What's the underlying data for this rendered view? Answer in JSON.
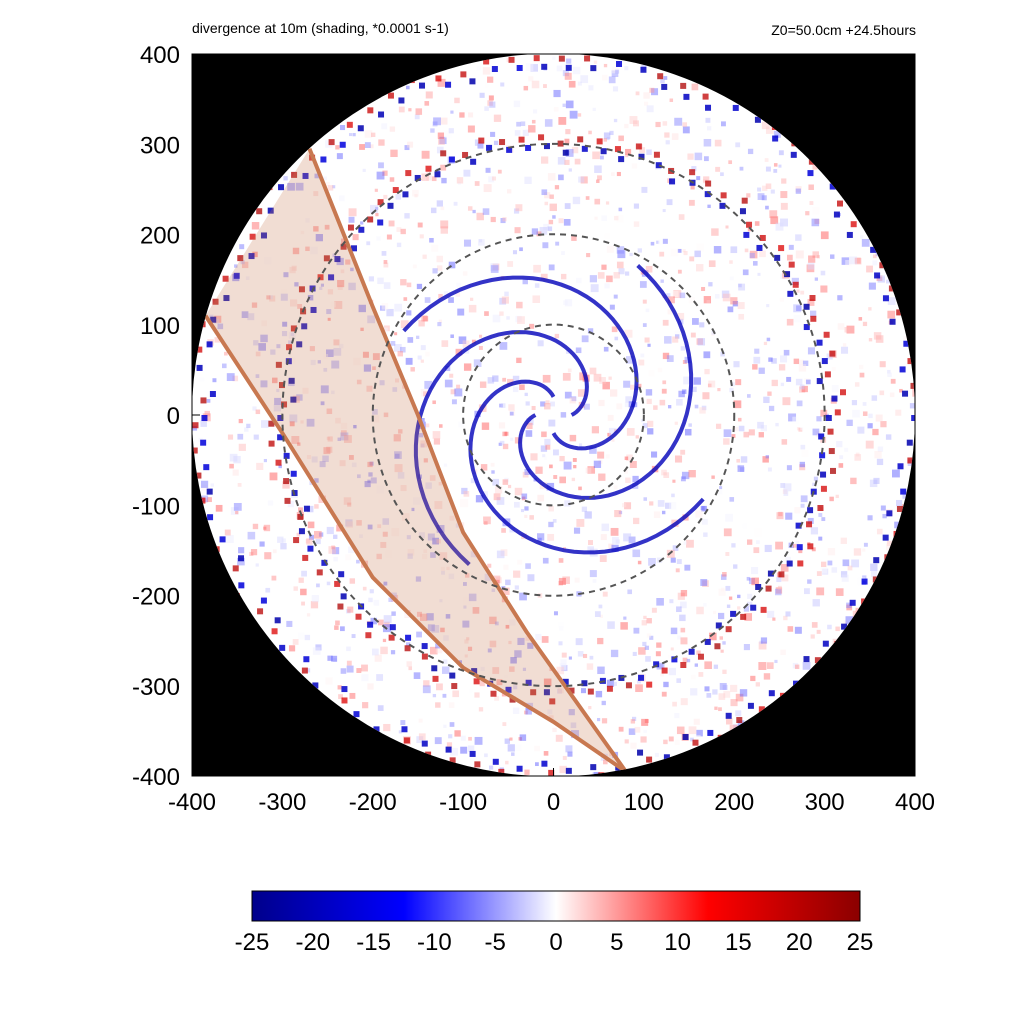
{
  "header": {
    "left_title": "divergence at 10m (shading, *0.0001 s-1)",
    "right_title": "Z0=50.0cm  +24.5hours"
  },
  "chart_data": {
    "type": "heatmap",
    "title": "divergence at 10m (shading, *0.0001 s-1)",
    "annotation": "Z0=50.0cm  +24.5hours",
    "xlim": [
      -400,
      400
    ],
    "ylim": [
      -400,
      400
    ],
    "x_ticks": [
      "-400",
      "-300",
      "-200",
      "-100",
      "0",
      "100",
      "200",
      "300",
      "400"
    ],
    "y_ticks": [
      "-400",
      "-300",
      "-200",
      "-100",
      "0",
      "100",
      "200",
      "300",
      "400"
    ],
    "domain_radius": 400,
    "dashed_circle_radii": [
      100,
      200,
      300
    ],
    "colorbar": {
      "min": -25,
      "max": 25,
      "ticks": [
        "-25",
        "-20",
        "-15",
        "-10",
        "-5",
        "0",
        "5",
        "10",
        "15",
        "20",
        "25"
      ],
      "colors": [
        "#00008b",
        "#0000ff",
        "#ffffff",
        "#ff0000",
        "#8b0000"
      ]
    },
    "overlay_band": {
      "color": "#c87850",
      "outer_edge": [
        [
          -385,
          110
        ],
        [
          -300,
          -20
        ],
        [
          -200,
          -180
        ],
        [
          -100,
          -280
        ],
        [
          0,
          -340
        ],
        [
          80,
          -395
        ]
      ],
      "inner_edge": [
        [
          -270,
          295
        ],
        [
          -200,
          120
        ],
        [
          -150,
          0
        ],
        [
          -100,
          -130
        ],
        [
          -30,
          -240
        ],
        [
          80,
          -395
        ]
      ]
    },
    "convergence_band_radii": [
      300,
      390
    ]
  }
}
